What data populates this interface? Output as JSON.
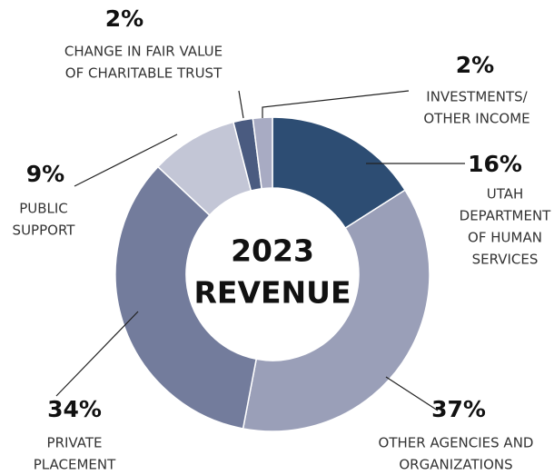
{
  "chart_data": {
    "type": "donut",
    "center_label": [
      "2023",
      "REVENUE"
    ],
    "categories": [
      [
        "UTAH",
        "DEPARTMENT",
        "OF HUMAN",
        "SERVICES"
      ],
      [
        "OTHER AGENCIES AND",
        "ORGANIZATIONS"
      ],
      [
        "PRIVATE",
        "PLACEMENT"
      ],
      [
        "PUBLIC",
        "SUPPORT"
      ],
      [
        "CHANGE IN FAIR VALUE",
        "OF CHARITABLE TRUST"
      ],
      [
        "INVESTMENTS/",
        "OTHER INCOME"
      ]
    ],
    "values": [
      16,
      37,
      34,
      9,
      2,
      2
    ],
    "value_labels": [
      "16%",
      "37%",
      "34%",
      "9%",
      "2%",
      "2%"
    ],
    "colors": [
      "#2d4d73",
      "#9a9fb8",
      "#737c9c",
      "#c3c6d6",
      "#4a5b80",
      "#a8abc3"
    ]
  }
}
